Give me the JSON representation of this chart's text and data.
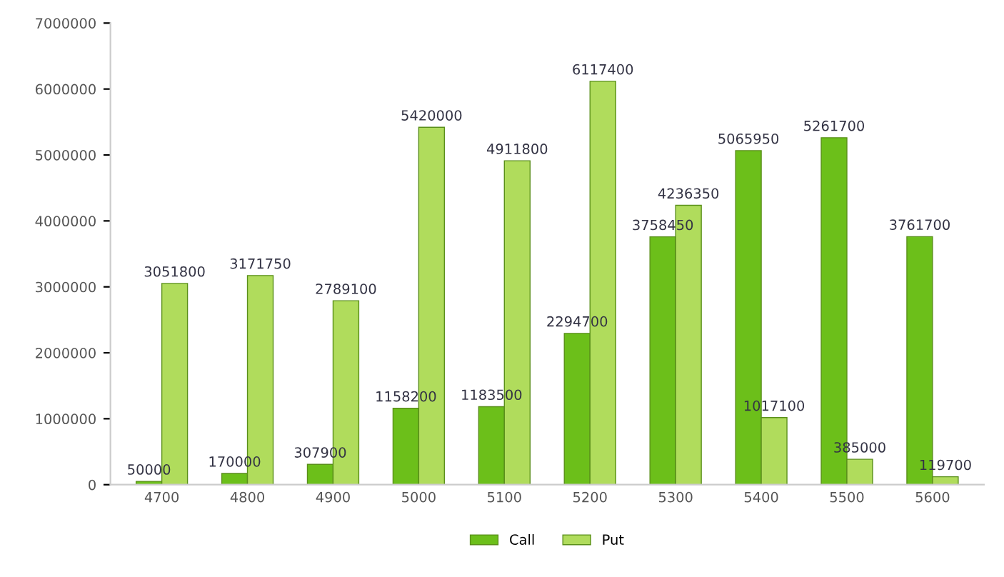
{
  "chart_data": {
    "type": "bar",
    "categories": [
      "4700",
      "4800",
      "4900",
      "5000",
      "5100",
      "5200",
      "5300",
      "5400",
      "5500",
      "5600"
    ],
    "series": [
      {
        "name": "Call",
        "color": "#6cbf1a",
        "values": [
          50000,
          170000,
          307900,
          1158200,
          1183500,
          2294700,
          3758450,
          5065950,
          5261700,
          3761700
        ]
      },
      {
        "name": "Put",
        "color": "#b0dc5c",
        "values": [
          3051800,
          3171750,
          2789100,
          5420000,
          4911800,
          6117400,
          4236350,
          1017100,
          385000,
          119700
        ]
      }
    ],
    "ylim": [
      0,
      7000000
    ],
    "yticks": [
      0,
      1000000,
      2000000,
      3000000,
      4000000,
      5000000,
      6000000,
      7000000
    ],
    "data_labels": true,
    "legend": "bottom",
    "grid": false
  }
}
